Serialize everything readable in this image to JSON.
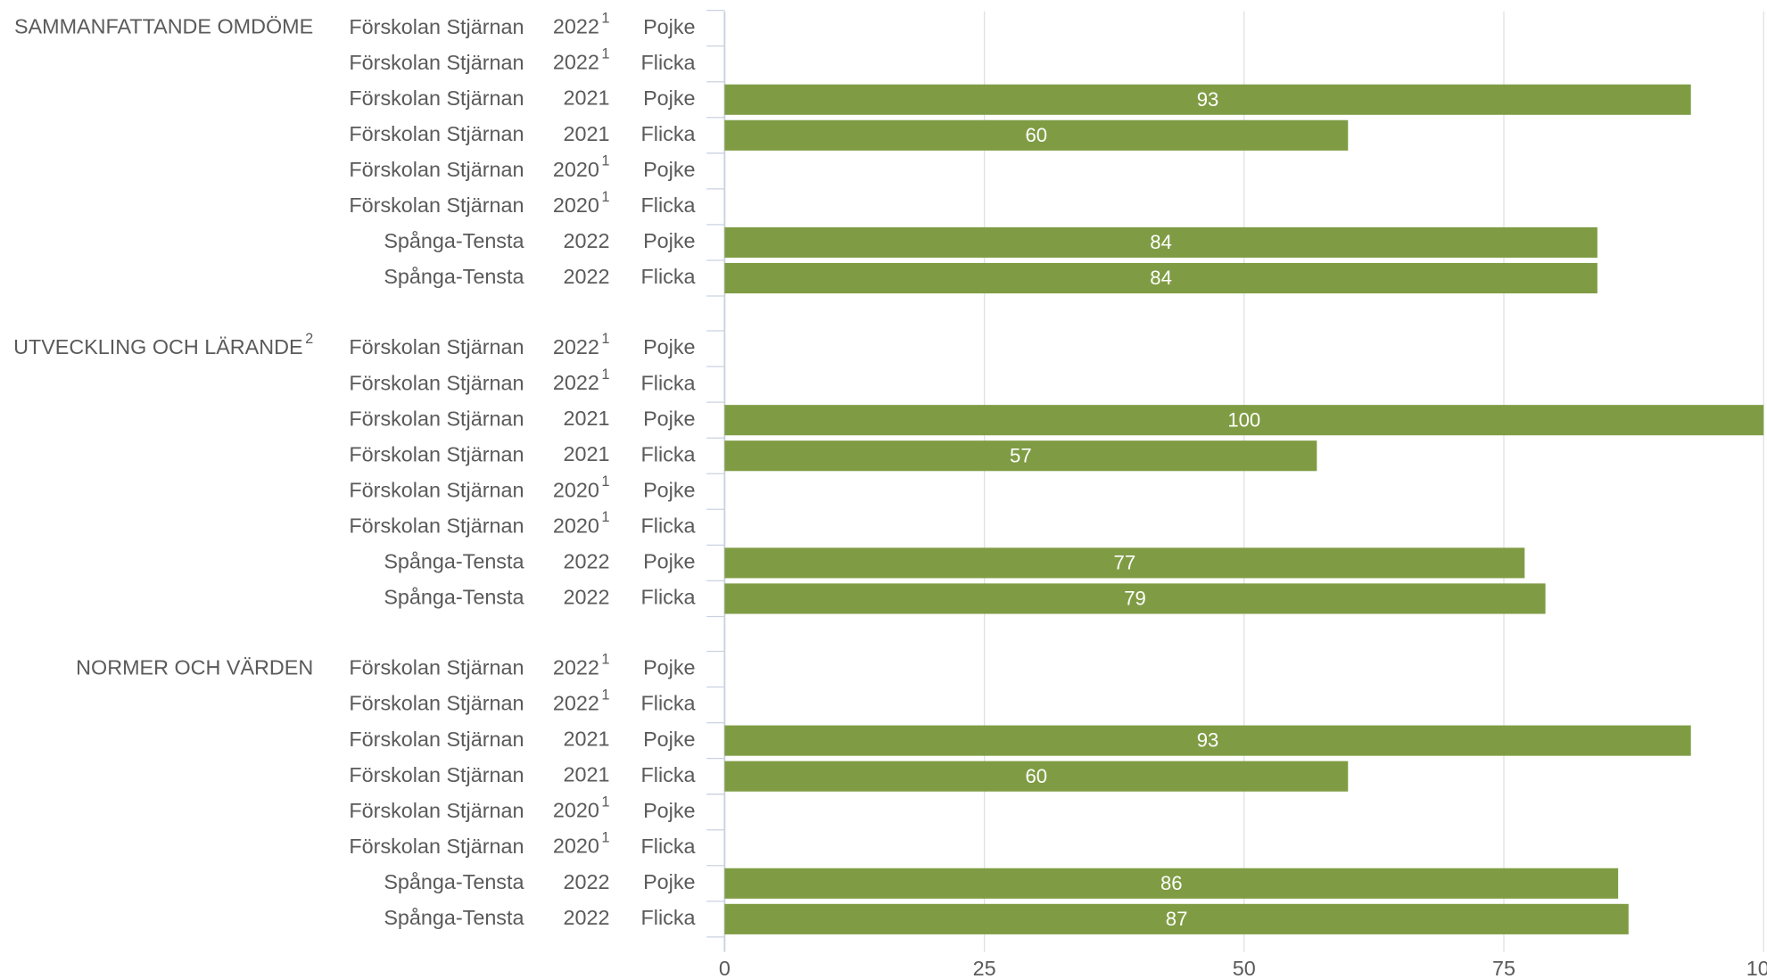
{
  "chart_data": {
    "type": "bar",
    "orientation": "horizontal",
    "color": "#7f9c44",
    "xlim": [
      0,
      100
    ],
    "xticks": [
      0,
      25,
      50,
      75,
      100
    ],
    "grid": true,
    "groups": [
      {
        "name": "SAMMANFATTANDE OMDÖME",
        "categories": [
          {
            "unit": "Förskolan Stjärnan",
            "year": "2022",
            "year_sup": "1",
            "gender": "Pojke"
          },
          {
            "unit": "Förskolan Stjärnan",
            "year": "2022",
            "year_sup": "1",
            "gender": "Flicka"
          },
          {
            "unit": "Förskolan Stjärnan",
            "year": "2021",
            "gender": "Pojke"
          },
          {
            "unit": "Förskolan Stjärnan",
            "year": "2021",
            "gender": "Flicka"
          },
          {
            "unit": "Förskolan Stjärnan",
            "year": "2020",
            "year_sup": "1",
            "gender": "Pojke"
          },
          {
            "unit": "Förskolan Stjärnan",
            "year": "2020",
            "year_sup": "1",
            "gender": "Flicka"
          },
          {
            "unit": "Spånga-Tensta",
            "year": "2022",
            "gender": "Pojke"
          },
          {
            "unit": "Spånga-Tensta",
            "year": "2022",
            "gender": "Flicka"
          }
        ],
        "values": [
          null,
          null,
          93,
          60,
          null,
          null,
          84,
          84
        ]
      },
      {
        "name": "UTVECKLING OCH LÄRANDE",
        "name_sup": "2",
        "categories": [
          {
            "unit": "Förskolan Stjärnan",
            "year": "2022",
            "year_sup": "1",
            "gender": "Pojke"
          },
          {
            "unit": "Förskolan Stjärnan",
            "year": "2022",
            "year_sup": "1",
            "gender": "Flicka"
          },
          {
            "unit": "Förskolan Stjärnan",
            "year": "2021",
            "gender": "Pojke"
          },
          {
            "unit": "Förskolan Stjärnan",
            "year": "2021",
            "gender": "Flicka"
          },
          {
            "unit": "Förskolan Stjärnan",
            "year": "2020",
            "year_sup": "1",
            "gender": "Pojke"
          },
          {
            "unit": "Förskolan Stjärnan",
            "year": "2020",
            "year_sup": "1",
            "gender": "Flicka"
          },
          {
            "unit": "Spånga-Tensta",
            "year": "2022",
            "gender": "Pojke"
          },
          {
            "unit": "Spånga-Tensta",
            "year": "2022",
            "gender": "Flicka"
          }
        ],
        "values": [
          null,
          null,
          100,
          57,
          null,
          null,
          77,
          79
        ]
      },
      {
        "name": "NORMER OCH VÄRDEN",
        "categories": [
          {
            "unit": "Förskolan Stjärnan",
            "year": "2022",
            "year_sup": "1",
            "gender": "Pojke"
          },
          {
            "unit": "Förskolan Stjärnan",
            "year": "2022",
            "year_sup": "1",
            "gender": "Flicka"
          },
          {
            "unit": "Förskolan Stjärnan",
            "year": "2021",
            "gender": "Pojke"
          },
          {
            "unit": "Förskolan Stjärnan",
            "year": "2021",
            "gender": "Flicka"
          },
          {
            "unit": "Förskolan Stjärnan",
            "year": "2020",
            "year_sup": "1",
            "gender": "Pojke"
          },
          {
            "unit": "Förskolan Stjärnan",
            "year": "2020",
            "year_sup": "1",
            "gender": "Flicka"
          },
          {
            "unit": "Spånga-Tensta",
            "year": "2022",
            "gender": "Pojke"
          },
          {
            "unit": "Spånga-Tensta",
            "year": "2022",
            "gender": "Flicka"
          }
        ],
        "values": [
          null,
          null,
          93,
          60,
          null,
          null,
          86,
          87
        ]
      }
    ]
  }
}
